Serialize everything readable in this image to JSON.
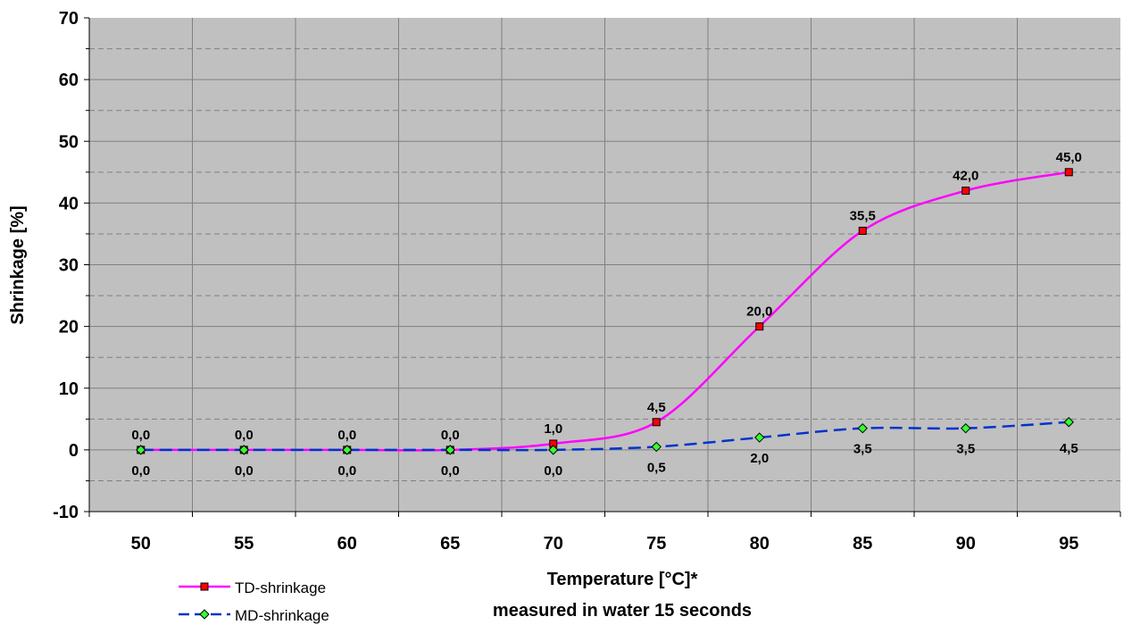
{
  "chart_data": {
    "type": "line",
    "x": [
      50,
      55,
      60,
      65,
      70,
      75,
      80,
      85,
      90,
      95
    ],
    "ylabel": "Shrinkage [%]",
    "xlabel": "Temperature [°C]*",
    "xlabel_note": "measured in water 15 seconds",
    "ylim": [
      -10,
      70
    ],
    "yticks": [
      "-10",
      "0",
      "10",
      "20",
      "30",
      "40",
      "50",
      "60",
      "70"
    ],
    "xticks": [
      "50",
      "55",
      "60",
      "65",
      "70",
      "75",
      "80",
      "85",
      "90",
      "95"
    ],
    "grid": true,
    "legend_position": "bottom-left",
    "series": [
      {
        "name": "TD-shrinkage",
        "values": [
          0,
          0,
          0,
          0,
          1,
          4.5,
          20,
          35.5,
          42,
          45
        ],
        "labels": [
          "0,0",
          "0,0",
          "0,0",
          "0,0",
          "1,0",
          "4,5",
          "20,0",
          "35,5",
          "42,0",
          "45,0"
        ],
        "line_color": "#ff00ff",
        "marker": "square",
        "marker_color": "#ff0000",
        "line_style": "solid"
      },
      {
        "name": "MD-shrinkage",
        "values": [
          0,
          0,
          0,
          0,
          0,
          0.5,
          2,
          3.5,
          3.5,
          4.5
        ],
        "labels": [
          "0,0",
          "0,0",
          "0,0",
          "0,0",
          "0,0",
          "0,5",
          "2,0",
          "3,5",
          "3,5",
          "4,5"
        ],
        "line_color": "#0033cc",
        "marker": "diamond",
        "marker_color": "#33ff33",
        "line_style": "dashed"
      }
    ],
    "plot_background": "#c0c0c0"
  }
}
